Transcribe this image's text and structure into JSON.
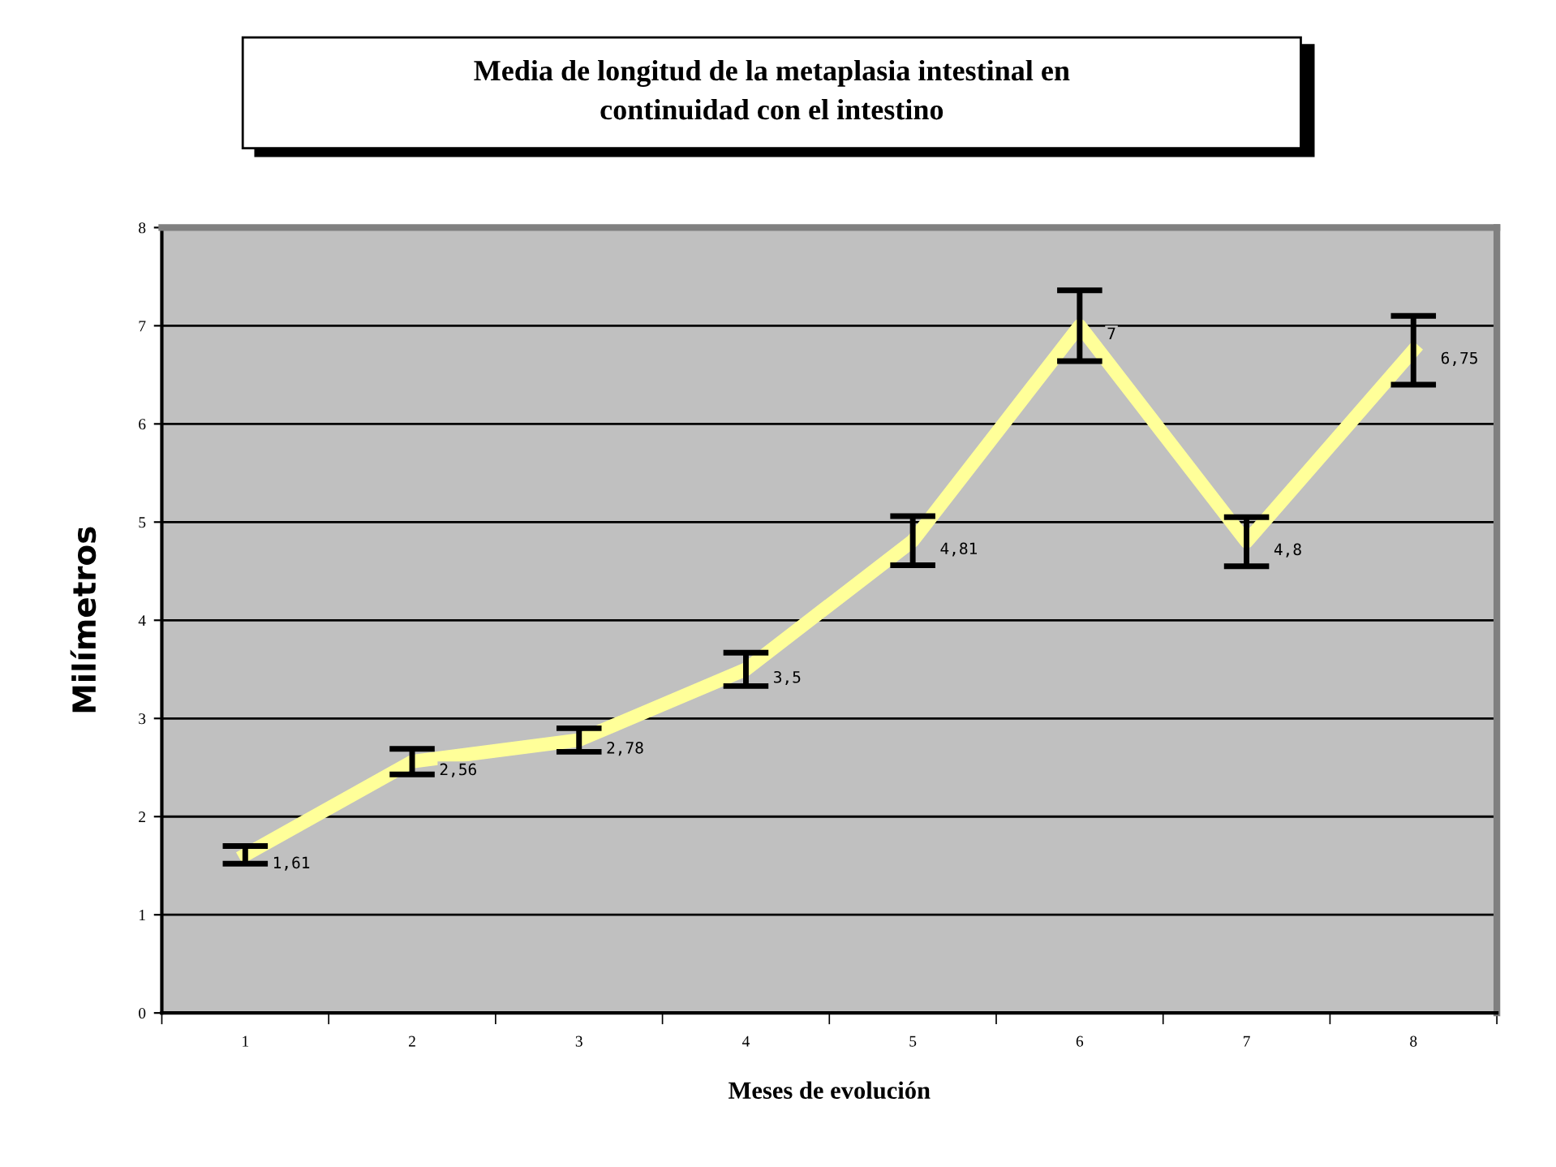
{
  "chart_data": {
    "type": "line",
    "title": "Media de longitud de la metaplasia intestinal en\ncontinuidad con el intestino",
    "xlabel": "Meses de evolución",
    "ylabel": "Milímetros",
    "categories": [
      "1",
      "2",
      "3",
      "4",
      "5",
      "6",
      "7",
      "8"
    ],
    "values": [
      1.61,
      2.56,
      2.78,
      3.5,
      4.81,
      7,
      4.8,
      6.75
    ],
    "errors": [
      0.09,
      0.13,
      0.12,
      0.17,
      0.25,
      0.36,
      0.25,
      0.35
    ],
    "value_labels": [
      "1,61",
      "2,56",
      "2,78",
      "3,5",
      "4,81",
      "7",
      "4,8",
      "6,75"
    ],
    "color": "#ffff99",
    "ylim": [
      0,
      8
    ],
    "yticks": [
      0,
      1,
      2,
      3,
      4,
      5,
      6,
      7,
      8
    ],
    "grid": "y",
    "marker": "none",
    "line_style": "solid"
  }
}
